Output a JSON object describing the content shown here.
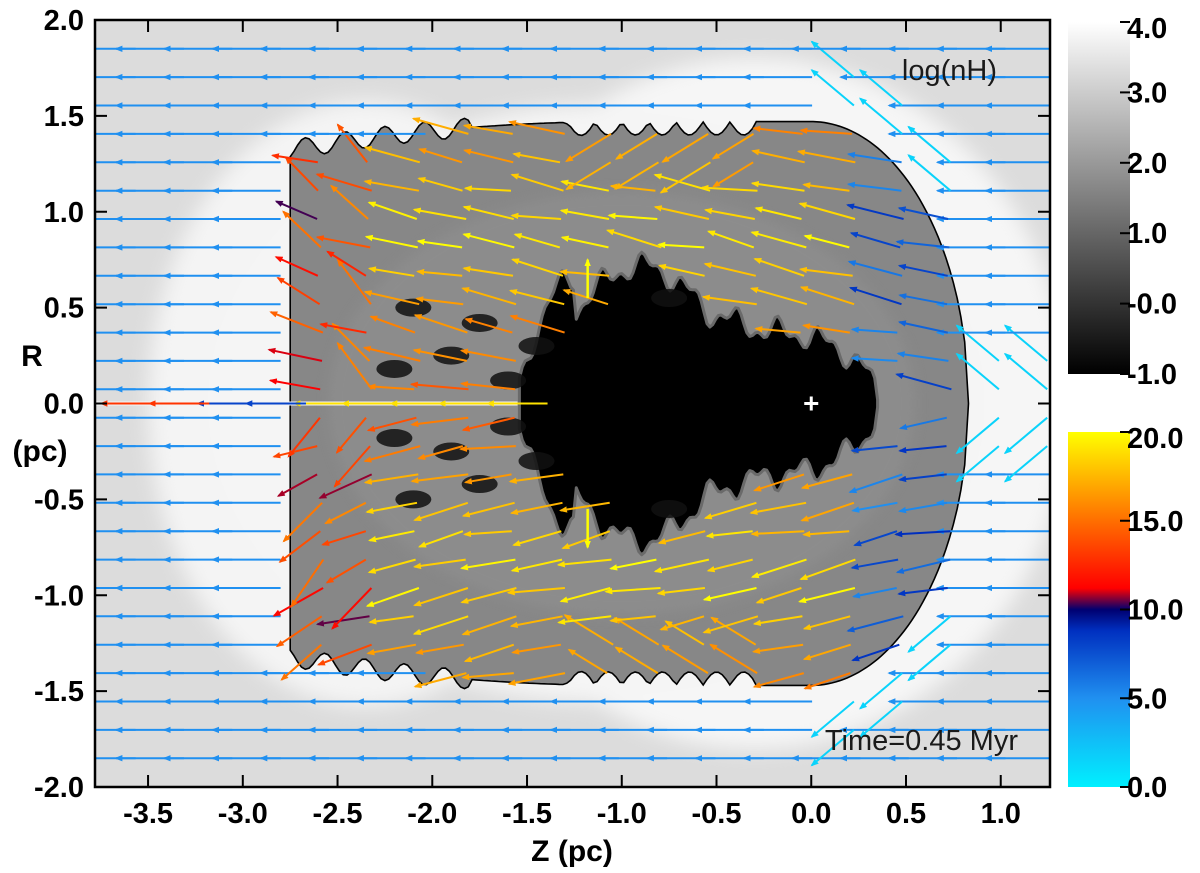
{
  "chart_data": {
    "type": "heatmap",
    "title": "",
    "field_label": "log(nH)",
    "time_label": "Time=0.45 Myr",
    "xlabel": "Z (pc)",
    "ylabel_top": "R",
    "ylabel_bottom": "(pc)",
    "xlim": [
      -3.78,
      1.26
    ],
    "ylim": [
      -2.0,
      2.0
    ],
    "xticks": [
      -3.5,
      -3.0,
      -2.5,
      -2.0,
      -1.5,
      -1.0,
      -0.5,
      0.0,
      0.5,
      1.0
    ],
    "xtick_labels": [
      "-3.5",
      "-3.0",
      "-2.5",
      "-2.0",
      "-1.5",
      "-1.0",
      "-0.5",
      "0.0",
      "0.5",
      "1.0"
    ],
    "yticks": [
      2.0,
      1.5,
      1.0,
      0.5,
      0.0,
      -0.5,
      -1.0,
      -1.5,
      -2.0
    ],
    "ytick_labels": [
      "2.0",
      "1.5",
      "1.0",
      "0.5",
      "0.0",
      "-0.5",
      "-1.0",
      "-1.5",
      "-2.0"
    ],
    "density_colorbar": {
      "range": [
        -1.0,
        4.0
      ],
      "ticks": [
        4.0,
        3.0,
        2.0,
        1.0,
        0.0,
        -1.0
      ],
      "tick_labels": [
        "4.0",
        "3.0",
        "2.0",
        "1.0",
        "-0.0",
        "-1.0"
      ],
      "colors": [
        "#000000",
        "#ffffff"
      ]
    },
    "velocity_colorbar": {
      "range": [
        0.0,
        20.0
      ],
      "ticks": [
        20.0,
        15.0,
        10.0,
        5.0,
        0.0
      ],
      "tick_labels": [
        "20.0",
        "15.0",
        "10.0",
        "5.0",
        "0.0"
      ],
      "colors": [
        "#00f0ff",
        "#2090f0",
        "#0030c0",
        "#000070",
        "#ff0000",
        "#ff8000",
        "#ffff00"
      ]
    },
    "features": {
      "star_position": [
        0.0,
        0.0
      ],
      "shell_outer_edge_z": 0.83,
      "shell_semiaxis_r": 1.47,
      "shell_tail_z": -2.75,
      "hot_bubble_front_z": 0.35,
      "hot_bubble_tail_z": -1.55,
      "background_log_nH": 2.25,
      "background_flow_speed": 5.0,
      "background_flow_direction": "-Z"
    }
  }
}
